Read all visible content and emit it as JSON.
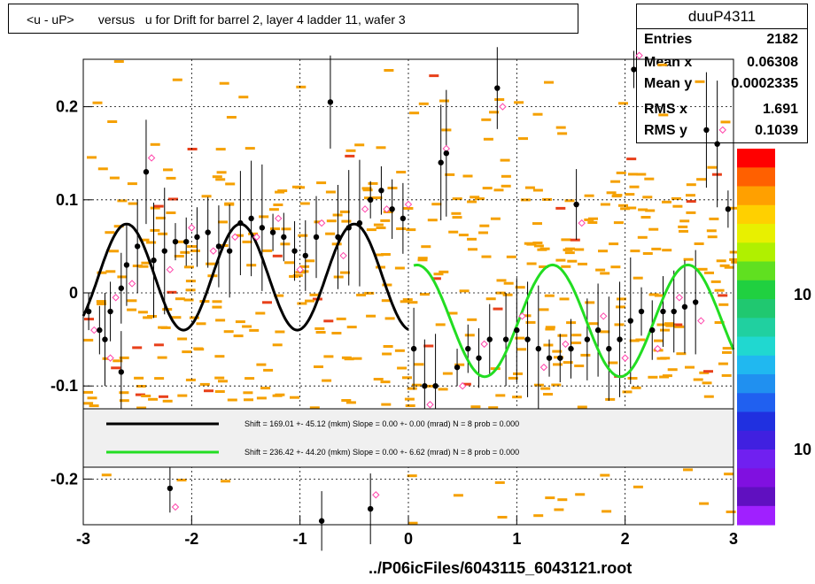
{
  "title": "<u - uP>       versus   u for Drift for barrel 2, layer 4 ladder 11, wafer 3",
  "stats": {
    "name": "duuP4311",
    "rows": [
      {
        "label": "Entries",
        "value": "2182"
      },
      {
        "label": "Mean x",
        "value": "0.06308"
      },
      {
        "label": "Mean y",
        "value": "0.0002335"
      },
      {
        "label": "RMS x",
        "value": "1.691"
      },
      {
        "label": "RMS y",
        "value": "0.1039"
      }
    ]
  },
  "x_axis_title": "../P06icFiles/6043115_6043121.root",
  "colors": {
    "fit_black": "#000000",
    "fit_green": "#22dd22",
    "cells": "#f5a000",
    "cells_hot": "#e8401a",
    "marker_open": "#ff44aa",
    "legend_bg": "#f0f0f0"
  },
  "chart_data": {
    "type": "scatter",
    "xlim": [
      -3,
      3
    ],
    "ylim": [
      -0.25,
      0.25
    ],
    "x_ticks": [
      "-3",
      "-2",
      "-1",
      "0",
      "1",
      "2",
      "3"
    ],
    "y_ticks": [
      "0.2",
      "0.1",
      "0",
      "-0.1",
      "-0.2"
    ],
    "palette_labels": [
      "10",
      "10"
    ],
    "grid": true,
    "legend": {
      "placement": "bottom-center",
      "entries": [
        {
          "color": "black",
          "text": "Shift =   169.01 +- 45.12 (mkm) Slope =     0.00 +- 0.00 (mrad)  N = 8 prob = 0.000"
        },
        {
          "color": "green",
          "text": "Shift =   236.42 +- 44.20 (mkm) Slope =     0.00 +- 6.62 (mrad)  N = 8 prob = 0.000"
        }
      ]
    },
    "fits": [
      {
        "color": "black",
        "x_range": [
          -3.0,
          0.0
        ],
        "amplitude": 0.057,
        "offset": 0.017,
        "period": 1.05,
        "phase_x": -2.6
      },
      {
        "color": "green",
        "x_range": [
          0.05,
          3.0
        ],
        "amplitude": 0.06,
        "offset": -0.03,
        "period": 1.25,
        "phase_x": 0.08,
        "envelope": "damped-middle"
      }
    ],
    "profile_points": [
      {
        "x": -2.95,
        "y": -0.02
      },
      {
        "x": -2.85,
        "y": -0.04
      },
      {
        "x": -2.75,
        "y": -0.02
      },
      {
        "x": -2.65,
        "y": 0.005
      },
      {
        "x": -2.6,
        "y": 0.03
      },
      {
        "x": -2.5,
        "y": 0.05
      },
      {
        "x": -2.42,
        "y": 0.13
      },
      {
        "x": -2.35,
        "y": 0.035
      },
      {
        "x": -2.25,
        "y": 0.045
      },
      {
        "x": -2.15,
        "y": 0.055
      },
      {
        "x": -2.05,
        "y": 0.055
      },
      {
        "x": -1.95,
        "y": 0.06
      },
      {
        "x": -1.85,
        "y": 0.065
      },
      {
        "x": -1.75,
        "y": 0.05
      },
      {
        "x": -1.65,
        "y": 0.045
      },
      {
        "x": -1.55,
        "y": 0.075
      },
      {
        "x": -1.45,
        "y": 0.08
      },
      {
        "x": -1.35,
        "y": 0.07
      },
      {
        "x": -1.25,
        "y": 0.065
      },
      {
        "x": -1.15,
        "y": 0.06
      },
      {
        "x": -1.05,
        "y": 0.045
      },
      {
        "x": -0.95,
        "y": 0.04
      },
      {
        "x": -0.85,
        "y": 0.06
      },
      {
        "x": -0.72,
        "y": 0.205
      },
      {
        "x": -0.65,
        "y": 0.06
      },
      {
        "x": -0.55,
        "y": 0.07
      },
      {
        "x": -0.45,
        "y": 0.075
      },
      {
        "x": -0.35,
        "y": 0.1
      },
      {
        "x": -0.25,
        "y": 0.11
      },
      {
        "x": -0.15,
        "y": 0.09
      },
      {
        "x": -0.05,
        "y": 0.08
      },
      {
        "x": 0.05,
        "y": -0.06
      },
      {
        "x": 0.15,
        "y": -0.1
      },
      {
        "x": 0.25,
        "y": -0.1
      },
      {
        "x": 0.3,
        "y": 0.14
      },
      {
        "x": 0.35,
        "y": 0.15
      },
      {
        "x": 0.45,
        "y": -0.08
      },
      {
        "x": 0.55,
        "y": -0.06
      },
      {
        "x": 0.65,
        "y": -0.07
      },
      {
        "x": 0.75,
        "y": -0.05
      },
      {
        "x": 0.82,
        "y": 0.22
      },
      {
        "x": 0.9,
        "y": -0.05
      },
      {
        "x": 1.0,
        "y": -0.04
      },
      {
        "x": 1.1,
        "y": -0.05
      },
      {
        "x": 1.2,
        "y": -0.06
      },
      {
        "x": 1.3,
        "y": -0.07
      },
      {
        "x": 1.4,
        "y": -0.07
      },
      {
        "x": 1.5,
        "y": -0.06
      },
      {
        "x": 1.55,
        "y": 0.095
      },
      {
        "x": 1.65,
        "y": -0.05
      },
      {
        "x": 1.75,
        "y": -0.04
      },
      {
        "x": 1.85,
        "y": -0.06
      },
      {
        "x": 1.95,
        "y": -0.05
      },
      {
        "x": 2.05,
        "y": -0.03
      },
      {
        "x": 2.08,
        "y": 0.24
      },
      {
        "x": 2.15,
        "y": -0.02
      },
      {
        "x": 2.25,
        "y": -0.04
      },
      {
        "x": 2.35,
        "y": -0.02
      },
      {
        "x": 2.45,
        "y": -0.02
      },
      {
        "x": 2.55,
        "y": -0.015
      },
      {
        "x": 2.65,
        "y": -0.01
      },
      {
        "x": 2.75,
        "y": 0.175
      },
      {
        "x": 2.85,
        "y": 0.16
      },
      {
        "x": 2.95,
        "y": 0.09
      },
      {
        "x": -2.2,
        "y": -0.21
      },
      {
        "x": -0.8,
        "y": -0.245
      },
      {
        "x": -0.35,
        "y": -0.232
      },
      {
        "x": -2.65,
        "y": -0.085
      },
      {
        "x": -2.8,
        "y": -0.05
      }
    ]
  }
}
